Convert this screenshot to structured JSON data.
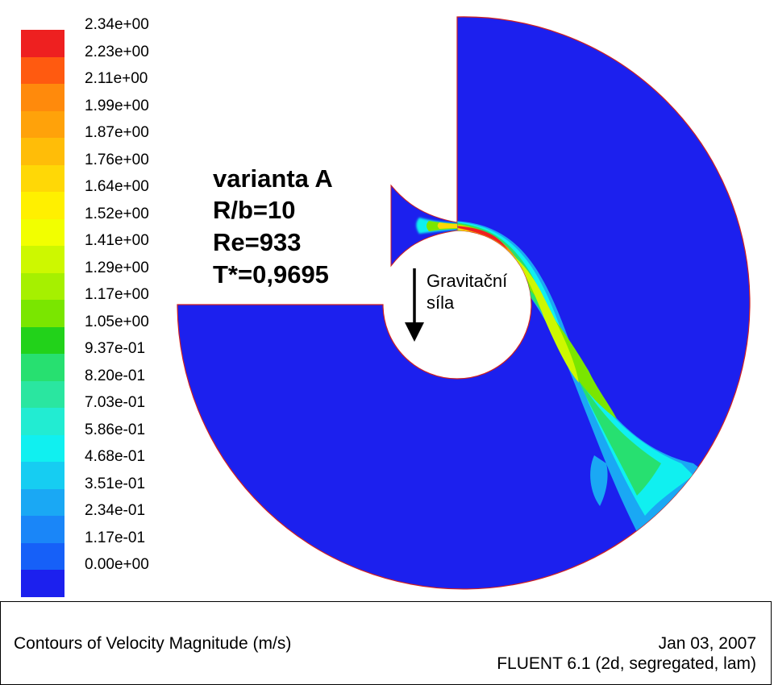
{
  "colorbar": {
    "labels": [
      "2.34e+00",
      "2.23e+00",
      "2.11e+00",
      "1.99e+00",
      "1.87e+00",
      "1.76e+00",
      "1.64e+00",
      "1.52e+00",
      "1.41e+00",
      "1.29e+00",
      "1.17e+00",
      "1.05e+00",
      "9.37e-01",
      "8.20e-01",
      "7.03e-01",
      "5.86e-01",
      "4.68e-01",
      "3.51e-01",
      "2.34e-01",
      "1.17e-01",
      "0.00e+00"
    ],
    "colors": [
      "#ee2020",
      "#ff5a10",
      "#ff8a0c",
      "#ffa20a",
      "#ffbd08",
      "#ffd806",
      "#fff000",
      "#f2ff00",
      "#cdf800",
      "#a6f000",
      "#7ae600",
      "#22d21a",
      "#27e070",
      "#2ae6a0",
      "#22ecd2",
      "#10f0f0",
      "#16cdf2",
      "#1aa8f4",
      "#1a86f8",
      "#1660f8",
      "#1c20ee"
    ]
  },
  "annotations": {
    "case": [
      "varianta A",
      "R/b=10",
      "Re=933",
      "T*=0,9695"
    ],
    "gravity": [
      "Gravitační",
      "síla"
    ]
  },
  "footer": {
    "title": "Contours of Velocity Magnitude (m/s)",
    "date": "Jan 03, 2007",
    "solver": "FLUENT 6.1 (2d, segregated, lam)"
  }
}
